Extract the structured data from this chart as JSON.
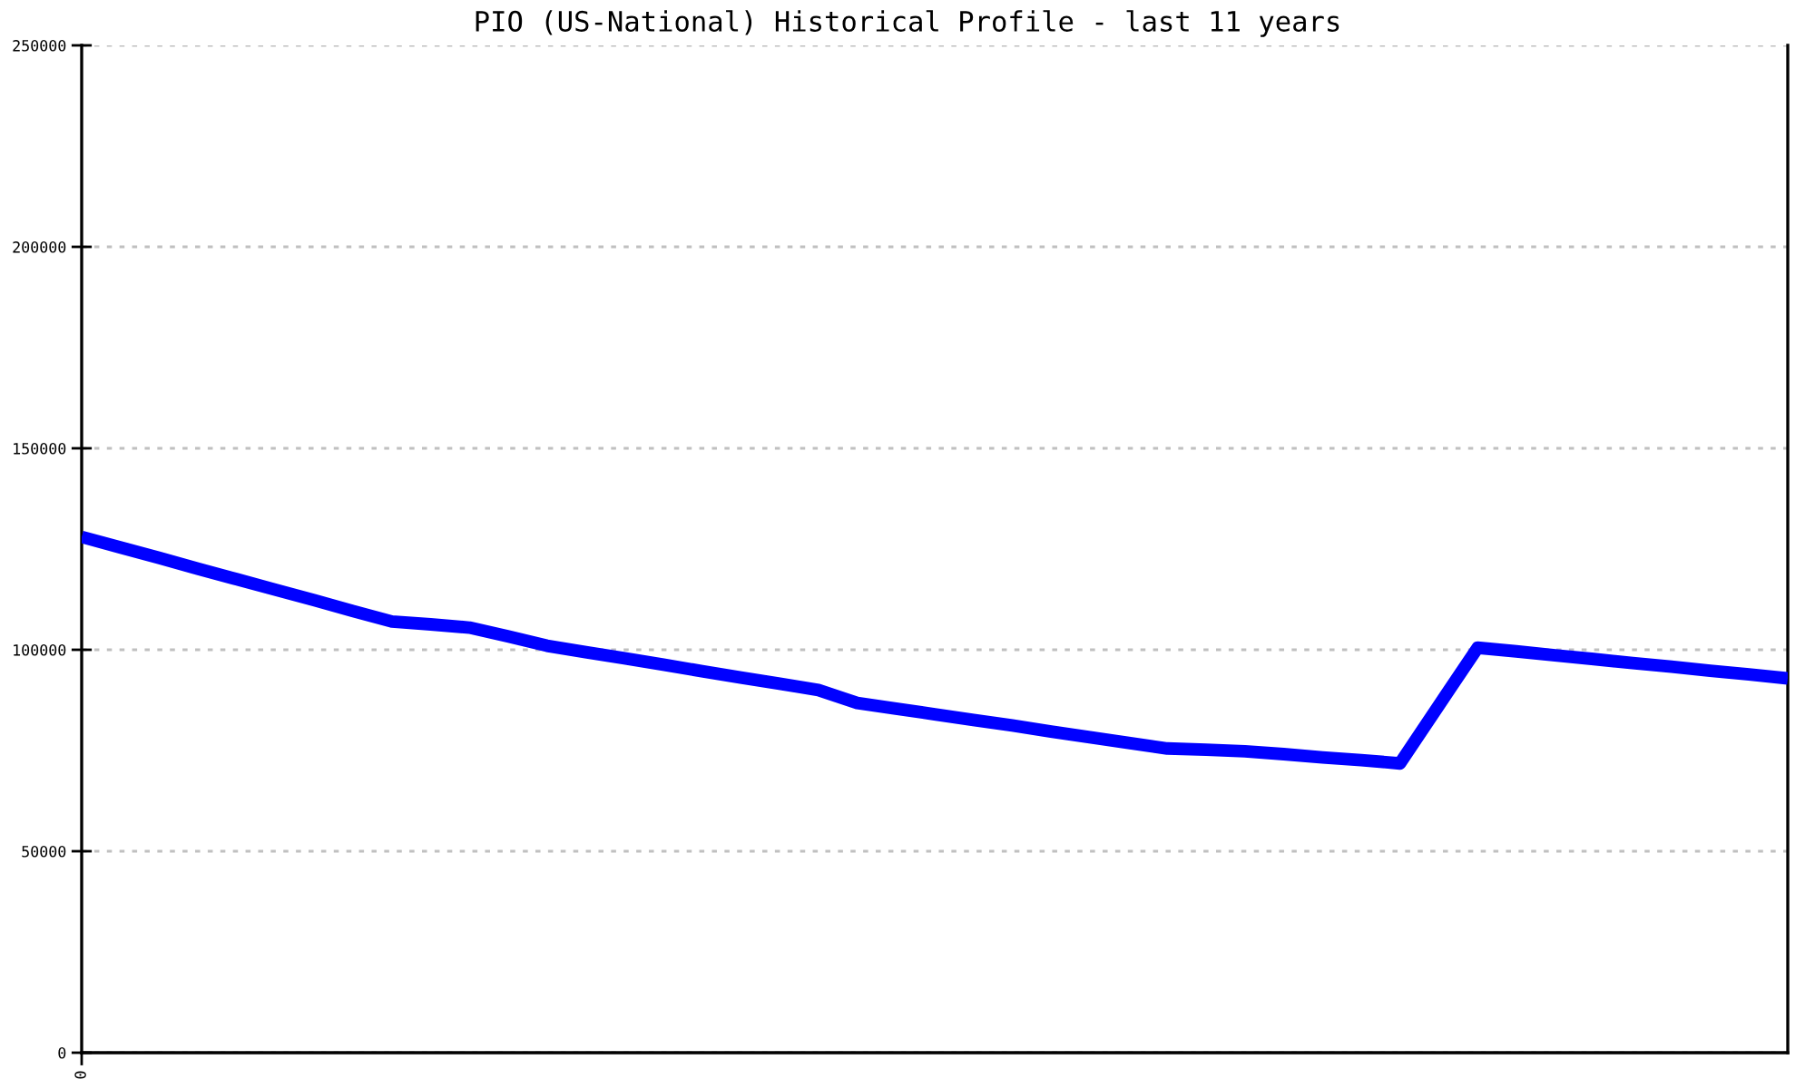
{
  "chart_data": {
    "type": "line",
    "title": "PIO (US-National) Historical Profile - last 11 years",
    "categories": [
      "0",
      null,
      null,
      null,
      null,
      null,
      null,
      null,
      null,
      null,
      null,
      null,
      null,
      null,
      null,
      null,
      null,
      null,
      null,
      null,
      null,
      null,
      null,
      null,
      null,
      null,
      null,
      null,
      null,
      null,
      null,
      null,
      null,
      null,
      null,
      null,
      null,
      null,
      null,
      null,
      null,
      null,
      null,
      null,
      null
    ],
    "series": [
      {
        "color": "#0000ff",
        "values": [
          128000,
          125400,
          122800,
          120100,
          117500,
          114900,
          112300,
          109600,
          107000,
          106300,
          105500,
          103300,
          101000,
          99400,
          97900,
          96300,
          94700,
          93100,
          91600,
          90000,
          86800,
          85400,
          84000,
          82600,
          81200,
          79700,
          78300,
          76900,
          75500,
          75200,
          74800,
          74100,
          73300,
          72600,
          71800,
          86200,
          100500,
          99600,
          98600,
          97700,
          96700,
          95800,
          94800,
          93900,
          92900
        ]
      }
    ],
    "ylim": [
      0,
      250000
    ],
    "yticks": [
      0,
      50000,
      100000,
      150000,
      200000,
      250000
    ],
    "grid": "y"
  }
}
